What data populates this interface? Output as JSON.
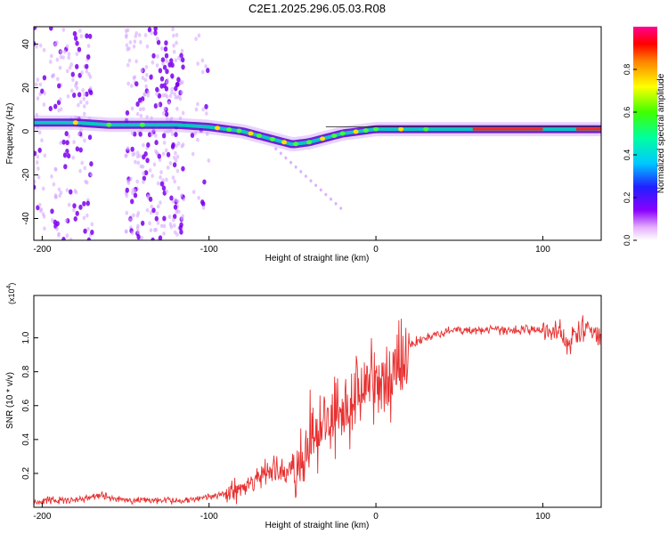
{
  "title": "C2E1.2025.296.05.03.R08",
  "chart_data": [
    {
      "type": "heatmap",
      "title": "C2E1.2025.296.05.03.R08",
      "xlabel": "Height of straight line (km)",
      "ylabel": "Frequency (Hz)",
      "xlim": [
        -205,
        135
      ],
      "ylim": [
        -50,
        48
      ],
      "xticks": [
        -200,
        -100,
        0,
        100
      ],
      "yticks": [
        -40,
        -20,
        0,
        20,
        40
      ],
      "colorbar": {
        "label": "Normalized spectral amplitude",
        "ticks": [
          0.0,
          0.2,
          0.4,
          0.6,
          0.8
        ],
        "range": [
          0,
          1
        ]
      },
      "ridge": {
        "x": [
          -205,
          -180,
          -160,
          -140,
          -120,
          -100,
          -90,
          -80,
          -70,
          -60,
          -50,
          -40,
          -30,
          -20,
          -10,
          0,
          20,
          50,
          80,
          100,
          120,
          135
        ],
        "y": [
          4,
          4,
          3,
          3,
          3,
          2,
          1,
          0,
          -2,
          -4,
          -6,
          -5,
          -3,
          -1,
          0,
          1,
          1,
          1,
          1,
          1,
          1,
          1
        ]
      }
    },
    {
      "type": "line",
      "xlabel": "Height of straight line (km)",
      "ylabel": "SNR (10 * v/v)",
      "y_exponent_label": "(x10",
      "y_exponent_sup": "4",
      "y_exponent_close": ")",
      "xlim": [
        -205,
        135
      ],
      "ylim": [
        0,
        1.25
      ],
      "xticks": [
        -200,
        -100,
        0,
        100
      ],
      "yticks": [
        0.2,
        0.4,
        0.6,
        0.8,
        1.0
      ],
      "series": [
        {
          "name": "SNR",
          "color": "#e83030",
          "x": [
            -205,
            -195,
            -185,
            -175,
            -165,
            -155,
            -145,
            -135,
            -125,
            -115,
            -105,
            -95,
            -85,
            -75,
            -68,
            -60,
            -55,
            -50,
            -45,
            -40,
            -35,
            -30,
            -25,
            -20,
            -15,
            -10,
            -5,
            0,
            5,
            10,
            15,
            20,
            25,
            30,
            35,
            40,
            45,
            50,
            60,
            70,
            80,
            90,
            100,
            105,
            110,
            115,
            120,
            125,
            135
          ],
          "y": [
            0.03,
            0.04,
            0.04,
            0.05,
            0.07,
            0.05,
            0.04,
            0.04,
            0.04,
            0.04,
            0.05,
            0.07,
            0.1,
            0.14,
            0.2,
            0.22,
            0.18,
            0.25,
            0.3,
            0.4,
            0.45,
            0.5,
            0.55,
            0.62,
            0.6,
            0.7,
            0.75,
            0.7,
            0.72,
            0.8,
            0.88,
            0.95,
            0.98,
            1.0,
            1.02,
            1.03,
            1.04,
            1.05,
            1.04,
            1.05,
            1.04,
            1.05,
            1.04,
            1.03,
            1.05,
            0.95,
            1.03,
            1.04,
            1.03
          ]
        }
      ]
    }
  ]
}
